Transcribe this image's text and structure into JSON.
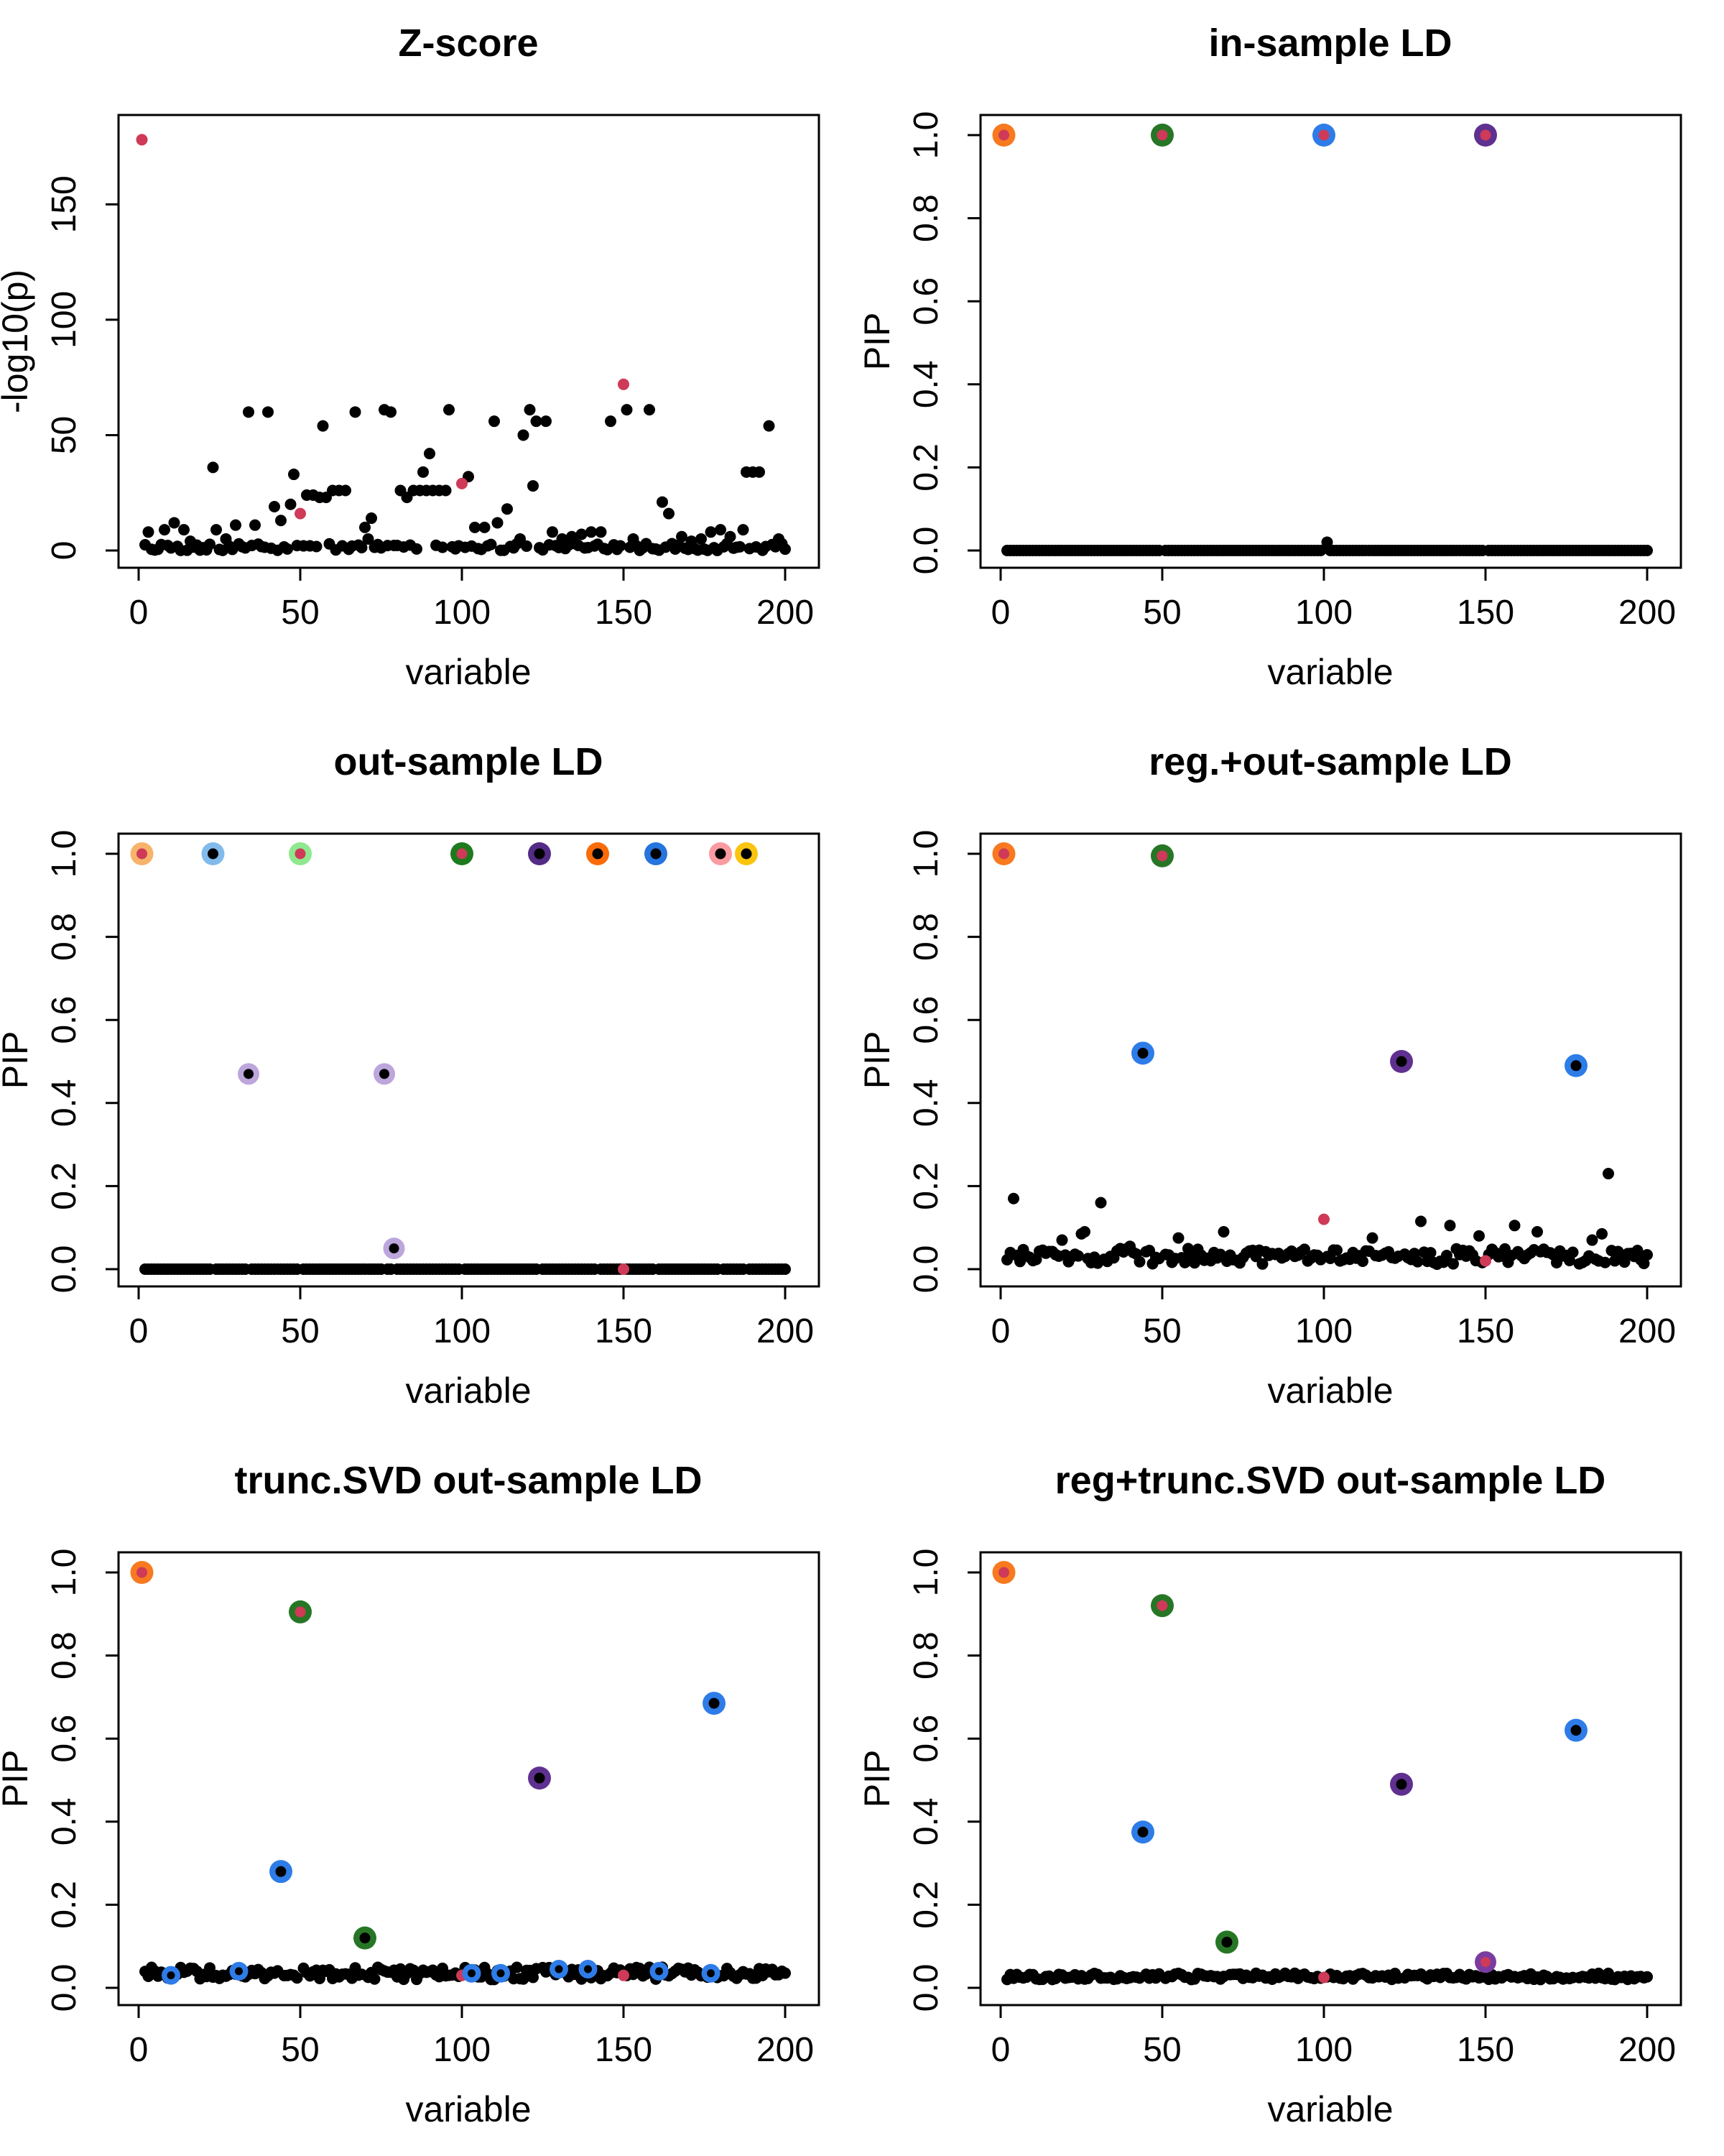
{
  "figure": {
    "background": "#ffffff",
    "rows": 3,
    "cols": 2
  },
  "palette": {
    "red": "#CE3A57",
    "black": "#000000",
    "orange": "#F8791F",
    "green": "#267626",
    "blue": "#2E7CE8",
    "purple": "#5F3090",
    "purple_magenta": "#7B3CA0",
    "light_orange": "#F7B36A",
    "light_blue": "#82BBEB",
    "light_green": "#8FE88F",
    "dark_green": "#1D7A1D",
    "dark_purple": "#532C86",
    "orange_vivid": "#FA6B0A",
    "blue_deep": "#2674DD",
    "pink": "#FA9BA2",
    "yellow": "#FBC40F",
    "lavender": "#BCA6DC"
  },
  "chart_data": [
    {
      "type": "scatter",
      "title": "Z-score",
      "xlabel": "variable",
      "ylabel": "-log10(p)",
      "xlim": [
        0,
        200
      ],
      "ylim": [
        0,
        180
      ],
      "xticks": [
        0,
        50,
        100,
        150,
        200
      ],
      "xtick_labels": [
        "0",
        "50",
        "100",
        "150",
        "200"
      ],
      "yticks": [
        0,
        50,
        100,
        150
      ],
      "ytick_labels": [
        "0",
        "50",
        "100",
        "150"
      ],
      "grid": false,
      "black_points": [
        [
          3,
          8
        ],
        [
          8,
          9
        ],
        [
          11,
          12
        ],
        [
          14,
          9
        ],
        [
          16,
          4
        ],
        [
          23,
          36
        ],
        [
          24,
          9
        ],
        [
          27,
          5
        ],
        [
          30,
          11
        ],
        [
          34,
          60
        ],
        [
          36,
          11
        ],
        [
          40,
          60
        ],
        [
          42,
          19
        ],
        [
          44,
          13
        ],
        [
          47,
          20
        ],
        [
          48,
          33
        ],
        [
          52,
          24
        ],
        [
          54,
          24
        ],
        [
          56,
          23
        ],
        [
          57,
          54
        ],
        [
          58,
          23
        ],
        [
          60,
          26
        ],
        [
          62,
          26
        ],
        [
          64,
          26
        ],
        [
          67,
          60
        ],
        [
          70,
          10
        ],
        [
          71,
          5
        ],
        [
          72,
          14
        ],
        [
          76,
          61
        ],
        [
          78,
          60
        ],
        [
          81,
          26
        ],
        [
          83,
          23
        ],
        [
          85,
          26
        ],
        [
          87,
          26
        ],
        [
          88,
          34
        ],
        [
          89,
          26
        ],
        [
          90,
          42
        ],
        [
          91,
          26
        ],
        [
          93,
          26
        ],
        [
          95,
          26
        ],
        [
          96,
          61
        ],
        [
          102,
          32
        ],
        [
          104,
          10
        ],
        [
          107,
          10
        ],
        [
          110,
          56
        ],
        [
          111,
          12
        ],
        [
          114,
          18
        ],
        [
          118,
          5
        ],
        [
          119,
          50
        ],
        [
          121,
          61
        ],
        [
          122,
          28
        ],
        [
          123,
          56
        ],
        [
          126,
          56
        ],
        [
          128,
          8
        ],
        [
          131,
          5
        ],
        [
          134,
          6
        ],
        [
          137,
          7
        ],
        [
          140,
          8
        ],
        [
          143,
          8
        ],
        [
          146,
          56
        ],
        [
          151,
          61
        ],
        [
          153,
          5
        ],
        [
          158,
          61
        ],
        [
          162,
          21
        ],
        [
          164,
          16
        ],
        [
          168,
          6
        ],
        [
          171,
          4
        ],
        [
          174,
          5
        ],
        [
          177,
          8
        ],
        [
          180,
          9
        ],
        [
          183,
          6
        ],
        [
          187,
          9
        ],
        [
          188,
          34
        ],
        [
          190,
          34
        ],
        [
          192,
          34
        ],
        [
          195,
          54
        ],
        [
          198,
          5
        ]
      ],
      "red_points": [
        [
          1,
          178
        ],
        [
          50,
          16
        ],
        [
          100,
          29
        ],
        [
          150,
          72
        ]
      ],
      "ringed_points": [],
      "baseline_noise": {
        "n": 200,
        "x_min": 2,
        "x_max": 200,
        "y_min": 0,
        "y_max": 3,
        "seed": 11
      }
    },
    {
      "type": "scatter",
      "title": "in-sample LD",
      "xlabel": "variable",
      "ylabel": "PIP",
      "xlim": [
        0,
        200
      ],
      "ylim": [
        0,
        1
      ],
      "xticks": [
        0,
        50,
        100,
        150,
        200
      ],
      "xtick_labels": [
        "0",
        "50",
        "100",
        "150",
        "200"
      ],
      "yticks": [
        0,
        0.2,
        0.4,
        0.6,
        0.8,
        1.0
      ],
      "ytick_labels": [
        "0.0",
        "0.2",
        "0.4",
        "0.6",
        "0.8",
        "1.0"
      ],
      "grid": false,
      "black_points": [
        [
          101,
          0.02
        ]
      ],
      "red_points": [],
      "ringed_points": [
        {
          "x": 1,
          "y": 1.0,
          "ring": "orange",
          "center": "red",
          "size": "large"
        },
        {
          "x": 50,
          "y": 1.0,
          "ring": "green",
          "center": "red",
          "size": "large"
        },
        {
          "x": 100,
          "y": 1.0,
          "ring": "blue",
          "center": "red",
          "size": "large"
        },
        {
          "x": 150,
          "y": 1.0,
          "ring": "purple",
          "center": "red",
          "size": "large"
        }
      ],
      "baseline_noise": {
        "n": 200,
        "x_min": 1,
        "x_max": 200,
        "y_min": 0,
        "y_max": 0,
        "seed": 22
      }
    },
    {
      "type": "scatter",
      "title": "out-sample LD",
      "xlabel": "variable",
      "ylabel": "PIP",
      "xlim": [
        0,
        200
      ],
      "ylim": [
        0,
        1
      ],
      "xticks": [
        0,
        50,
        100,
        150,
        200
      ],
      "xtick_labels": [
        "0",
        "50",
        "100",
        "150",
        "200"
      ],
      "yticks": [
        0,
        0.2,
        0.4,
        0.6,
        0.8,
        1.0
      ],
      "ytick_labels": [
        "0.0",
        "0.2",
        "0.4",
        "0.6",
        "0.8",
        "1.0"
      ],
      "grid": false,
      "black_points": [],
      "red_points": [
        [
          150,
          0.0
        ]
      ],
      "ringed_points": [
        {
          "x": 1,
          "y": 1.0,
          "ring": "light_orange",
          "center": "red",
          "size": "large"
        },
        {
          "x": 23,
          "y": 1.0,
          "ring": "light_blue",
          "center": "black",
          "size": "large"
        },
        {
          "x": 34,
          "y": 0.47,
          "ring": "lavender",
          "center": "black",
          "size": "medium"
        },
        {
          "x": 50,
          "y": 1.0,
          "ring": "light_green",
          "center": "red",
          "size": "large"
        },
        {
          "x": 76,
          "y": 0.47,
          "ring": "lavender",
          "center": "black",
          "size": "medium"
        },
        {
          "x": 79,
          "y": 0.05,
          "ring": "lavender",
          "center": "black",
          "size": "medium"
        },
        {
          "x": 100,
          "y": 1.0,
          "ring": "dark_green",
          "center": "red",
          "size": "large"
        },
        {
          "x": 124,
          "y": 1.0,
          "ring": "dark_purple",
          "center": "black",
          "size": "large"
        },
        {
          "x": 142,
          "y": 1.0,
          "ring": "orange_vivid",
          "center": "black",
          "size": "large"
        },
        {
          "x": 160,
          "y": 1.0,
          "ring": "blue_deep",
          "center": "black",
          "size": "large"
        },
        {
          "x": 180,
          "y": 1.0,
          "ring": "pink",
          "center": "black",
          "size": "large"
        },
        {
          "x": 188,
          "y": 1.0,
          "ring": "yellow",
          "center": "black",
          "size": "large"
        }
      ],
      "baseline_noise": {
        "n": 200,
        "x_min": 1,
        "x_max": 200,
        "y_min": 0,
        "y_max": 0,
        "seed": 33
      }
    },
    {
      "type": "scatter",
      "title": "reg.+out-sample LD",
      "xlabel": "variable",
      "ylabel": "PIP",
      "xlim": [
        0,
        200
      ],
      "ylim": [
        0,
        1
      ],
      "xticks": [
        0,
        50,
        100,
        150,
        200
      ],
      "xtick_labels": [
        "0",
        "50",
        "100",
        "150",
        "200"
      ],
      "yticks": [
        0,
        0.2,
        0.4,
        0.6,
        0.8,
        1.0
      ],
      "ytick_labels": [
        "0.0",
        "0.2",
        "0.4",
        "0.6",
        "0.8",
        "1.0"
      ],
      "grid": false,
      "black_points": [
        [
          4,
          0.17
        ],
        [
          19,
          0.07
        ],
        [
          25,
          0.085
        ],
        [
          26,
          0.09
        ],
        [
          31,
          0.16
        ],
        [
          40,
          0.055
        ],
        [
          46,
          0.045
        ],
        [
          55,
          0.075
        ],
        [
          69,
          0.09
        ],
        [
          109,
          0.04
        ],
        [
          115,
          0.075
        ],
        [
          130,
          0.115
        ],
        [
          139,
          0.105
        ],
        [
          148,
          0.08
        ],
        [
          159,
          0.105
        ],
        [
          166,
          0.09
        ],
        [
          183,
          0.07
        ],
        [
          186,
          0.085
        ],
        [
          188,
          0.23
        ],
        [
          197,
          0.045
        ]
      ],
      "red_points": [
        [
          100,
          0.12
        ],
        [
          150,
          0.02
        ]
      ],
      "ringed_points": [
        {
          "x": 1,
          "y": 1.0,
          "ring": "orange",
          "center": "red",
          "size": "large"
        },
        {
          "x": 44,
          "y": 0.52,
          "ring": "blue",
          "center": "black",
          "size": "large"
        },
        {
          "x": 50,
          "y": 0.995,
          "ring": "green",
          "center": "red",
          "size": "large"
        },
        {
          "x": 124,
          "y": 0.5,
          "ring": "purple",
          "center": "black",
          "size": "large"
        },
        {
          "x": 178,
          "y": 0.49,
          "ring": "blue",
          "center": "black",
          "size": "large"
        }
      ],
      "baseline_noise": {
        "n": 200,
        "x_min": 1,
        "x_max": 200,
        "y_min": 0.012,
        "y_max": 0.05,
        "seed": 44
      }
    },
    {
      "type": "scatter",
      "title": "trunc.SVD out-sample LD",
      "xlabel": "variable",
      "ylabel": "PIP",
      "xlim": [
        0,
        200
      ],
      "ylim": [
        0,
        1
      ],
      "xticks": [
        0,
        50,
        100,
        150,
        200
      ],
      "xtick_labels": [
        "0",
        "50",
        "100",
        "150",
        "200"
      ],
      "yticks": [
        0,
        0.2,
        0.4,
        0.6,
        0.8,
        1.0
      ],
      "ytick_labels": [
        "0.0",
        "0.2",
        "0.4",
        "0.6",
        "0.8",
        "1.0"
      ],
      "grid": false,
      "black_points": [],
      "red_points": [
        [
          100,
          0.03
        ],
        [
          150,
          0.03
        ]
      ],
      "ringed_points": [
        {
          "x": 1,
          "y": 1.0,
          "ring": "orange",
          "center": "red",
          "size": "large"
        },
        {
          "x": 10,
          "y": 0.03,
          "ring": "blue",
          "center": "black",
          "size": "small"
        },
        {
          "x": 31,
          "y": 0.04,
          "ring": "blue",
          "center": "black",
          "size": "small"
        },
        {
          "x": 44,
          "y": 0.28,
          "ring": "blue",
          "center": "black",
          "size": "large"
        },
        {
          "x": 50,
          "y": 0.905,
          "ring": "green",
          "center": "red",
          "size": "large"
        },
        {
          "x": 70,
          "y": 0.12,
          "ring": "green",
          "center": "black",
          "size": "large"
        },
        {
          "x": 103,
          "y": 0.035,
          "ring": "blue",
          "center": "black",
          "size": "small"
        },
        {
          "x": 112,
          "y": 0.035,
          "ring": "blue",
          "center": "black",
          "size": "small"
        },
        {
          "x": 124,
          "y": 0.505,
          "ring": "purple",
          "center": "black",
          "size": "large"
        },
        {
          "x": 130,
          "y": 0.045,
          "ring": "blue",
          "center": "black",
          "size": "small"
        },
        {
          "x": 139,
          "y": 0.045,
          "ring": "blue",
          "center": "black",
          "size": "small"
        },
        {
          "x": 161,
          "y": 0.04,
          "ring": "blue",
          "center": "black",
          "size": "small"
        },
        {
          "x": 177,
          "y": 0.035,
          "ring": "blue",
          "center": "black",
          "size": "small"
        },
        {
          "x": 178,
          "y": 0.685,
          "ring": "blue",
          "center": "black",
          "size": "large"
        }
      ],
      "baseline_noise": {
        "n": 200,
        "x_min": 1,
        "x_max": 200,
        "y_min": 0.02,
        "y_max": 0.05,
        "seed": 55
      }
    },
    {
      "type": "scatter",
      "title": "reg+trunc.SVD out-sample LD",
      "xlabel": "variable",
      "ylabel": "PIP",
      "xlim": [
        0,
        200
      ],
      "ylim": [
        0,
        1
      ],
      "xticks": [
        0,
        50,
        100,
        150,
        200
      ],
      "xtick_labels": [
        "0",
        "50",
        "100",
        "150",
        "200"
      ],
      "yticks": [
        0,
        0.2,
        0.4,
        0.6,
        0.8,
        1.0
      ],
      "ytick_labels": [
        "0.0",
        "0.2",
        "0.4",
        "0.6",
        "0.8",
        "1.0"
      ],
      "grid": false,
      "black_points": [],
      "red_points": [
        [
          100,
          0.025
        ]
      ],
      "ringed_points": [
        {
          "x": 1,
          "y": 1.0,
          "ring": "orange",
          "center": "red",
          "size": "large"
        },
        {
          "x": 44,
          "y": 0.375,
          "ring": "blue",
          "center": "black",
          "size": "large"
        },
        {
          "x": 50,
          "y": 0.92,
          "ring": "green",
          "center": "red",
          "size": "large"
        },
        {
          "x": 70,
          "y": 0.11,
          "ring": "green",
          "center": "black",
          "size": "large"
        },
        {
          "x": 124,
          "y": 0.49,
          "ring": "purple",
          "center": "black",
          "size": "large"
        },
        {
          "x": 150,
          "y": 0.062,
          "ring": "purple_magenta",
          "center": "red",
          "size": "medium"
        },
        {
          "x": 178,
          "y": 0.62,
          "ring": "blue",
          "center": "black",
          "size": "large"
        }
      ],
      "baseline_noise": {
        "n": 200,
        "x_min": 1,
        "x_max": 200,
        "y_min": 0.02,
        "y_max": 0.035,
        "seed": 66
      }
    }
  ]
}
